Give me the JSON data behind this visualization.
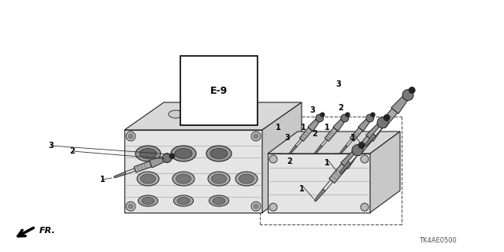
{
  "background_color": "#ffffff",
  "diagram_code": "TK4AE0500",
  "e9_label": "E-9",
  "fr_label": "FR.",
  "fig_width": 6.4,
  "fig_height": 3.2,
  "dpi": 100,
  "line_color": "#222222",
  "gray_fill": "#cccccc",
  "dark_gray": "#555555",
  "mid_gray": "#888888",
  "light_gray": "#e8e8e8"
}
